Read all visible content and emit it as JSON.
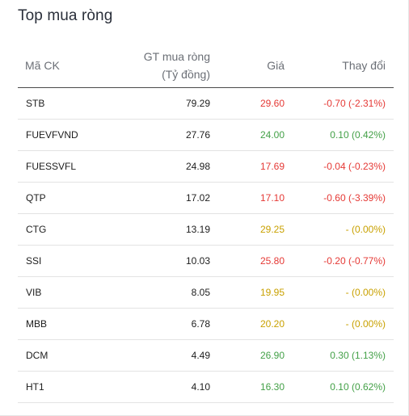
{
  "title": "Top mua ròng",
  "headers": {
    "symbol": "Mã CK",
    "value_line1": "GT mua ròng",
    "value_line2": "(Tỷ đồng)",
    "price": "Giá",
    "change": "Thay đổi"
  },
  "colors": {
    "down": "#e53935",
    "up": "#43a047",
    "reference": "#c9a100"
  },
  "rows": [
    {
      "symbol": "STB",
      "value": "79.29",
      "price": "29.60",
      "change": "-0.70 (-2.31%)",
      "trend": "down"
    },
    {
      "symbol": "FUEVFVND",
      "value": "27.76",
      "price": "24.00",
      "change": "0.10 (0.42%)",
      "trend": "up"
    },
    {
      "symbol": "FUESSVFL",
      "value": "24.98",
      "price": "17.69",
      "change": "-0.04 (-0.23%)",
      "trend": "down"
    },
    {
      "symbol": "QTP",
      "value": "17.02",
      "price": "17.10",
      "change": "-0.60 (-3.39%)",
      "trend": "down"
    },
    {
      "symbol": "CTG",
      "value": "13.19",
      "price": "29.25",
      "change": "- (0.00%)",
      "trend": "ref"
    },
    {
      "symbol": "SSI",
      "value": "10.03",
      "price": "25.80",
      "change": "-0.20 (-0.77%)",
      "trend": "down"
    },
    {
      "symbol": "VIB",
      "value": "8.05",
      "price": "19.95",
      "change": "- (0.00%)",
      "trend": "ref"
    },
    {
      "symbol": "MBB",
      "value": "6.78",
      "price": "20.20",
      "change": "- (0.00%)",
      "trend": "ref"
    },
    {
      "symbol": "DCM",
      "value": "4.49",
      "price": "26.90",
      "change": "0.30 (1.13%)",
      "trend": "up"
    },
    {
      "symbol": "HT1",
      "value": "4.10",
      "price": "16.30",
      "change": "0.10 (0.62%)",
      "trend": "up"
    }
  ]
}
